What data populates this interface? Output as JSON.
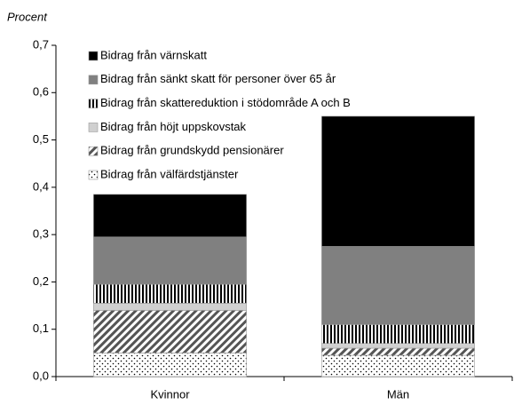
{
  "chart_data": {
    "type": "stacked_bar",
    "y_label": "Procent",
    "categories": [
      "Kvinnor",
      "Män"
    ],
    "series": [
      {
        "name": "Bidrag från välfärdstjänster",
        "color": "#000000",
        "pattern": "dots",
        "values": [
          0.05,
          0.045
        ]
      },
      {
        "name": "Bidrag från grundskydd pensionärer",
        "color": "#000000",
        "pattern": "diagonal",
        "values": [
          0.09,
          0.015
        ]
      },
      {
        "name": "Bidrag från höjt uppskovstak",
        "color": "#d0d0d0",
        "pattern": "solid",
        "values": [
          0.015,
          0.01
        ]
      },
      {
        "name": "Bidrag från skattereduktion i stödområde A och B",
        "color": "#000000",
        "pattern": "vertical",
        "values": [
          0.04,
          0.04
        ]
      },
      {
        "name": "Bidrag från sänkt skatt för personer över 65 år",
        "color": "#808080",
        "pattern": "solid",
        "values": [
          0.1,
          0.165
        ]
      },
      {
        "name": "Bidrag från värnskatt",
        "color": "#000000",
        "pattern": "solid",
        "values": [
          0.09,
          0.275
        ]
      }
    ],
    "ylim": [
      0,
      0.7
    ],
    "yticks": [
      {
        "value": 0,
        "label": "0,0"
      },
      {
        "value": 0.1,
        "label": "0,1"
      },
      {
        "value": 0.2,
        "label": "0,2"
      },
      {
        "value": 0.3,
        "label": "0,3"
      },
      {
        "value": 0.4,
        "label": "0,4"
      },
      {
        "value": 0.5,
        "label": "0,5"
      },
      {
        "value": 0.6,
        "label": "0,6"
      },
      {
        "value": 0.7,
        "label": "0,7"
      }
    ],
    "grid": false,
    "legend": "top-left"
  }
}
